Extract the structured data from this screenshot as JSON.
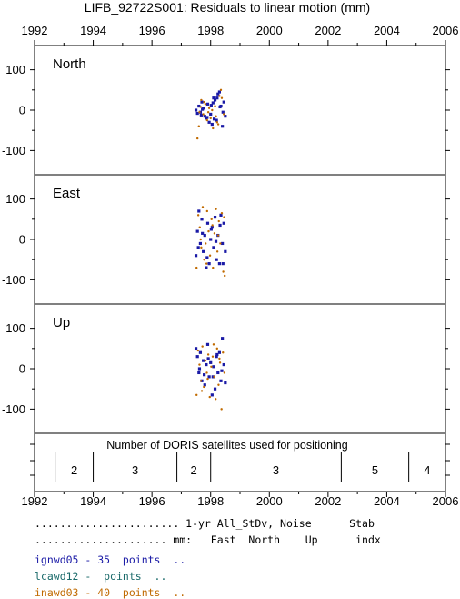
{
  "title": "LIFB_92722S001: Residuals to linear motion (mm)",
  "x_ticks": [
    "1992",
    "1994",
    "1996",
    "1998",
    "2000",
    "2002",
    "2004",
    "2006"
  ],
  "sat_title": "Number of DORIS satellites used for positioning",
  "sat_segments": [
    {
      "label": "2",
      "start": 1992.7,
      "end": 1994.0
    },
    {
      "label": "3",
      "start": 1994.0,
      "end": 1996.85
    },
    {
      "label": "2",
      "start": 1996.85,
      "end": 1998.0
    },
    {
      "label": "3",
      "start": 1998.0,
      "end": 2002.45
    },
    {
      "label": "5",
      "start": 2002.45,
      "end": 2004.75
    },
    {
      "label": "4",
      "start": 2004.75,
      "end": 2006.0
    }
  ],
  "legend": {
    "header1": "....................... 1-yr All_StDv, Noise      Stab",
    "header2": "..................... mm:   East  North    Up      indx",
    "rows": [
      {
        "text": "ignwd05 - 35  points  ..",
        "color": "#1a1aa6"
      },
      {
        "text": "lcawd12 -  points  ..",
        "color": "#1a6a6a"
      },
      {
        "text": "inawd03 - 40  points  ..",
        "color": "#c06a00"
      }
    ]
  },
  "chart_data": {
    "type": "scatter",
    "title": "LIFB_92722S001: Residuals to linear motion (mm)",
    "xlim": [
      1992,
      2006
    ],
    "ylim": [
      -160,
      160
    ],
    "y_ticks": [
      100,
      0,
      -100
    ],
    "y_tick_labels": [
      "100",
      "0",
      "-100"
    ],
    "series_colors": {
      "ignwd05": "#1a1aa6",
      "inawd03": "#c06a00"
    },
    "panels": [
      {
        "name": "North",
        "series": [
          {
            "name": "ignwd05",
            "x": [
              1997.5,
              1997.6,
              1997.65,
              1997.7,
              1997.75,
              1997.8,
              1997.85,
              1997.9,
              1997.95,
              1998.0,
              1998.05,
              1998.1,
              1998.15,
              1998.2,
              1998.25,
              1998.3,
              1998.35,
              1998.4,
              1998.45,
              1998.5,
              1997.55,
              1997.72,
              1997.88,
              1998.02,
              1998.12,
              1998.22,
              1998.32,
              1998.42,
              1997.68,
              1998.08
            ],
            "y": [
              0,
              10,
              -5,
              20,
              5,
              -15,
              -20,
              15,
              -30,
              -10,
              -35,
              30,
              25,
              -25,
              40,
              45,
              10,
              -40,
              20,
              -15,
              -8,
              2,
              -18,
              12,
              -22,
              30,
              8,
              -5,
              -12,
              18
            ]
          },
          {
            "name": "inawd03",
            "x": [
              1997.55,
              1997.62,
              1997.68,
              1997.75,
              1997.82,
              1997.88,
              1997.95,
              1998.0,
              1998.08,
              1998.15,
              1998.22,
              1998.3,
              1998.38,
              1998.45,
              1997.6,
              1997.78,
              1997.92,
              1998.05,
              1998.18,
              1998.35,
              1997.66,
              1998.26
            ],
            "y": [
              -70,
              -5,
              25,
              -10,
              15,
              -25,
              5,
              -20,
              -45,
              10,
              -30,
              35,
              30,
              -10,
              -40,
              20,
              -5,
              0,
              -15,
              50,
              8,
              -35
            ]
          }
        ]
      },
      {
        "name": "East",
        "series": [
          {
            "name": "ignwd05",
            "x": [
              1997.5,
              1997.55,
              1997.6,
              1997.65,
              1997.7,
              1997.75,
              1997.8,
              1997.85,
              1997.9,
              1997.95,
              1998.0,
              1998.05,
              1998.1,
              1998.15,
              1998.2,
              1998.25,
              1998.3,
              1998.35,
              1998.4,
              1998.45,
              1998.5,
              1997.58,
              1997.72,
              1997.88,
              1998.02,
              1998.18,
              1998.32,
              1998.42
            ],
            "y": [
              -40,
              20,
              70,
              -10,
              50,
              -30,
              10,
              -70,
              40,
              -60,
              0,
              30,
              -20,
              55,
              -50,
              10,
              -60,
              60,
              -10,
              40,
              -30,
              -20,
              15,
              -45,
              25,
              -5,
              35,
              -60
            ]
          },
          {
            "name": "inawd03",
            "x": [
              1997.52,
              1997.58,
              1997.63,
              1997.68,
              1997.73,
              1997.78,
              1997.83,
              1997.88,
              1997.93,
              1997.98,
              1998.03,
              1998.08,
              1998.13,
              1998.18,
              1998.23,
              1998.28,
              1998.33,
              1998.38,
              1998.43,
              1998.48,
              1997.66,
              1997.86,
              1998.06,
              1998.26,
              1998.46
            ],
            "y": [
              -70,
              60,
              30,
              -20,
              80,
              -50,
              -10,
              70,
              20,
              -40,
              50,
              -70,
              15,
              75,
              -30,
              45,
              -10,
              65,
              -80,
              -90,
              0,
              -60,
              35,
              10,
              55
            ]
          }
        ]
      },
      {
        "name": "Up",
        "series": [
          {
            "name": "ignwd05",
            "x": [
              1997.5,
              1997.55,
              1997.6,
              1997.65,
              1997.7,
              1997.75,
              1997.8,
              1997.85,
              1997.9,
              1997.95,
              1998.0,
              1998.05,
              1998.1,
              1998.15,
              1998.2,
              1998.25,
              1998.3,
              1998.35,
              1998.4,
              1998.45,
              1998.5,
              1997.62,
              1997.78,
              1997.92,
              1998.08,
              1998.22,
              1998.38
            ],
            "y": [
              50,
              30,
              -10,
              40,
              -30,
              20,
              -40,
              10,
              60,
              -20,
              15,
              -65,
              5,
              -50,
              30,
              -10,
              40,
              -30,
              75,
              10,
              -35,
              0,
              -15,
              25,
              -20,
              35,
              -5
            ]
          },
          {
            "name": "inawd03",
            "x": [
              1997.52,
              1997.57,
              1997.62,
              1997.67,
              1997.72,
              1997.77,
              1997.82,
              1997.87,
              1997.92,
              1997.97,
              1998.02,
              1998.07,
              1998.12,
              1998.17,
              1998.22,
              1998.27,
              1998.32,
              1998.37,
              1998.42,
              1998.47,
              1997.7,
              1997.9,
              1998.1,
              1998.3
            ],
            "y": [
              -65,
              45,
              10,
              -30,
              55,
              -45,
              20,
              -10,
              35,
              -70,
              5,
              30,
              -20,
              -75,
              50,
              -40,
              15,
              -100,
              40,
              -10,
              -55,
              -25,
              60,
              25
            ]
          }
        ]
      }
    ]
  }
}
